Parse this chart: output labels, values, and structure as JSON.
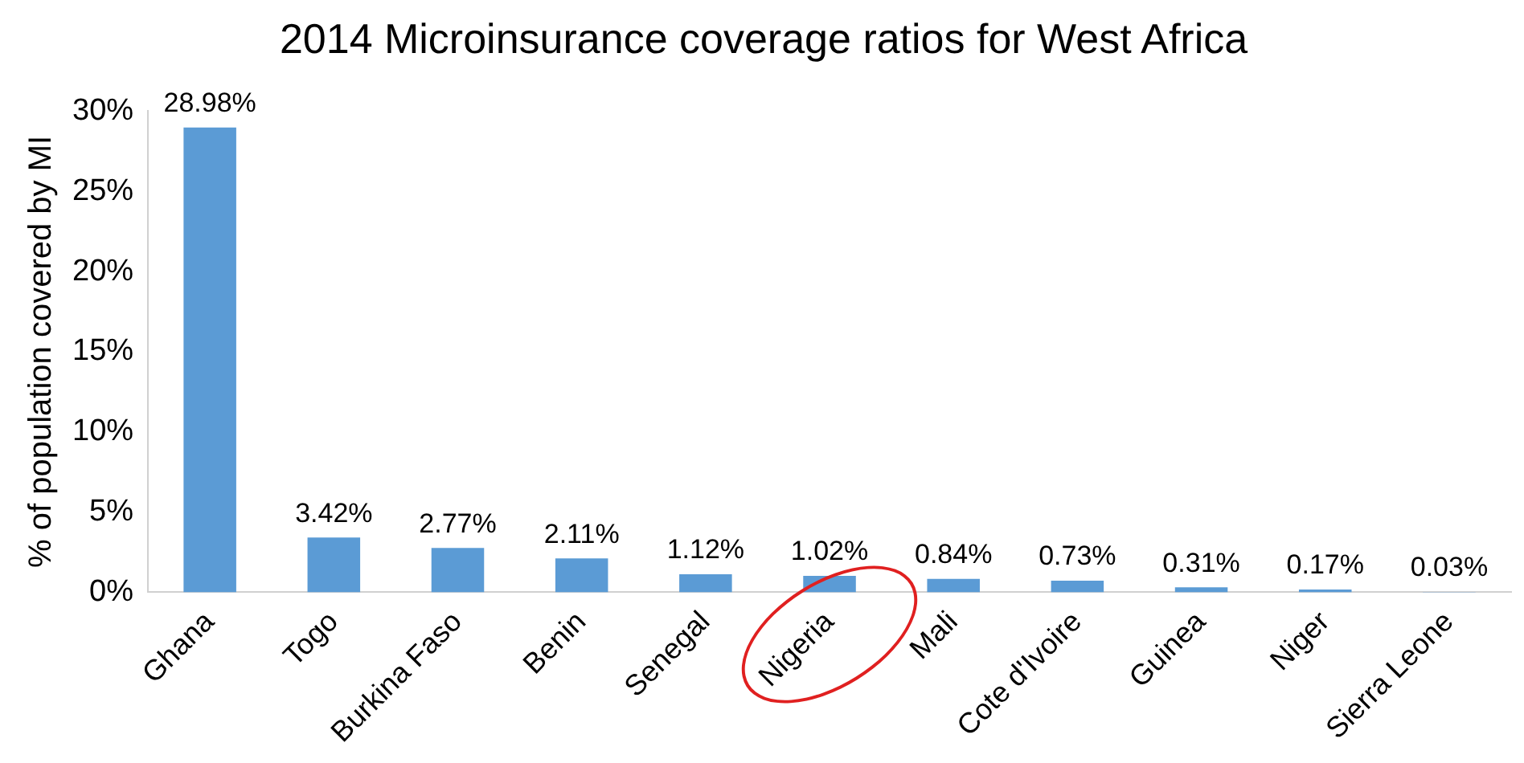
{
  "chart_data": {
    "type": "bar",
    "title": "2014 Microinsurance coverage ratios for West Africa",
    "ylabel": "% of population covered by MI",
    "categories": [
      "Ghana",
      "Togo",
      "Burkina Faso",
      "Benin",
      "Senegal",
      "Nigeria",
      "Mali",
      "Cote d'Ivoire",
      "Guinea",
      "Niger",
      "Sierra Leone"
    ],
    "values": [
      28.98,
      3.42,
      2.77,
      2.11,
      1.12,
      1.02,
      0.84,
      0.73,
      0.31,
      0.17,
      0.03
    ],
    "value_labels": [
      "28.98%",
      "3.42%",
      "2.77%",
      "2.11%",
      "1.12%",
      "1.02%",
      "0.84%",
      "0.73%",
      "0.31%",
      "0.17%",
      "0.03%"
    ],
    "color": "#5b9bd5",
    "ylim": [
      0,
      30
    ],
    "yticks": [
      {
        "value": 0,
        "label": "0%"
      },
      {
        "value": 5,
        "label": "5%"
      },
      {
        "value": 10,
        "label": "10%"
      },
      {
        "value": 15,
        "label": "15%"
      },
      {
        "value": 20,
        "label": "20%"
      },
      {
        "value": 25,
        "label": "25%"
      },
      {
        "value": 30,
        "label": "30%"
      }
    ],
    "grid": false,
    "legend": false
  }
}
